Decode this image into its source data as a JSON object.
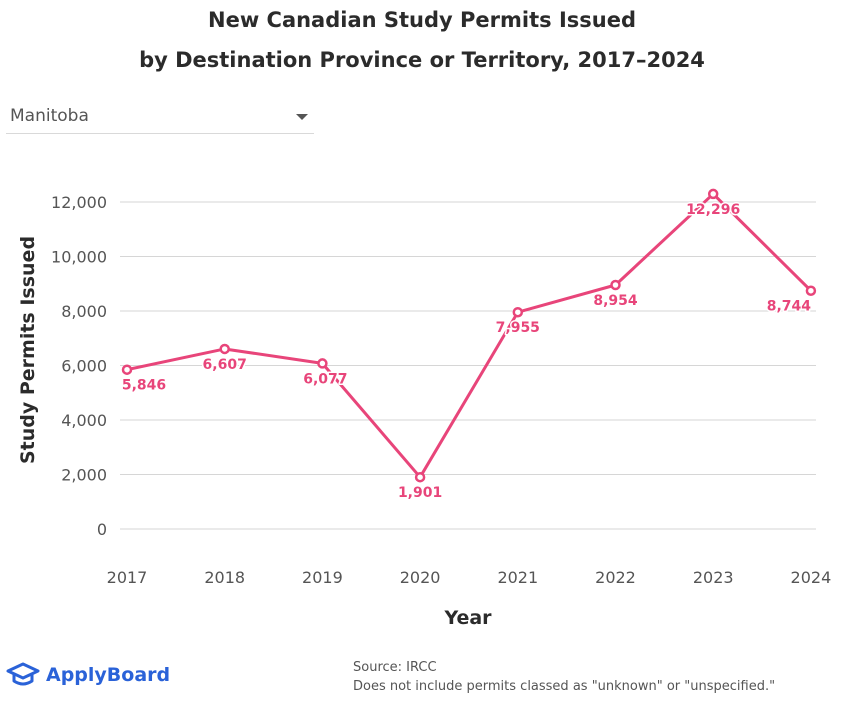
{
  "header": {
    "title_line1": "New Canadian Study Permits Issued",
    "title_line2": "by Destination Province or Territory, 2017–2024"
  },
  "dropdown": {
    "selected": "Manitoba",
    "icon": "chevron-down-icon"
  },
  "chart_data": {
    "type": "line",
    "title": "New Canadian Study Permits Issued by Destination Province or Territory, 2017–2024",
    "xlabel": "Year",
    "ylabel": "Study Permits Issued",
    "x": [
      "2017",
      "2018",
      "2019",
      "2020",
      "2021",
      "2022",
      "2023",
      "2024"
    ],
    "ylim": [
      0,
      12000
    ],
    "yticks": [
      0,
      2000,
      4000,
      6000,
      8000,
      10000,
      12000
    ],
    "ytick_labels": [
      "0",
      "2,000",
      "4,000",
      "6,000",
      "8,000",
      "10,000",
      "12,000"
    ],
    "grid": true,
    "series": [
      {
        "name": "Manitoba",
        "values": [
          5846,
          6607,
          6077,
          1901,
          7955,
          8954,
          12296,
          8744
        ],
        "labels": [
          "5,846",
          "6,607",
          "6,077",
          "1,901",
          "7,955",
          "8,954",
          "12,296",
          "8,744"
        ],
        "color": "#e8457a"
      }
    ]
  },
  "footer": {
    "brand": "ApplyBoard",
    "brand_color": "#2a62d8",
    "brand_icon": "graduation-cap-icon",
    "source_line1": "Source: IRCC",
    "source_line2": "Does not include permits classed as \"unknown\" or \"unspecified.\""
  }
}
